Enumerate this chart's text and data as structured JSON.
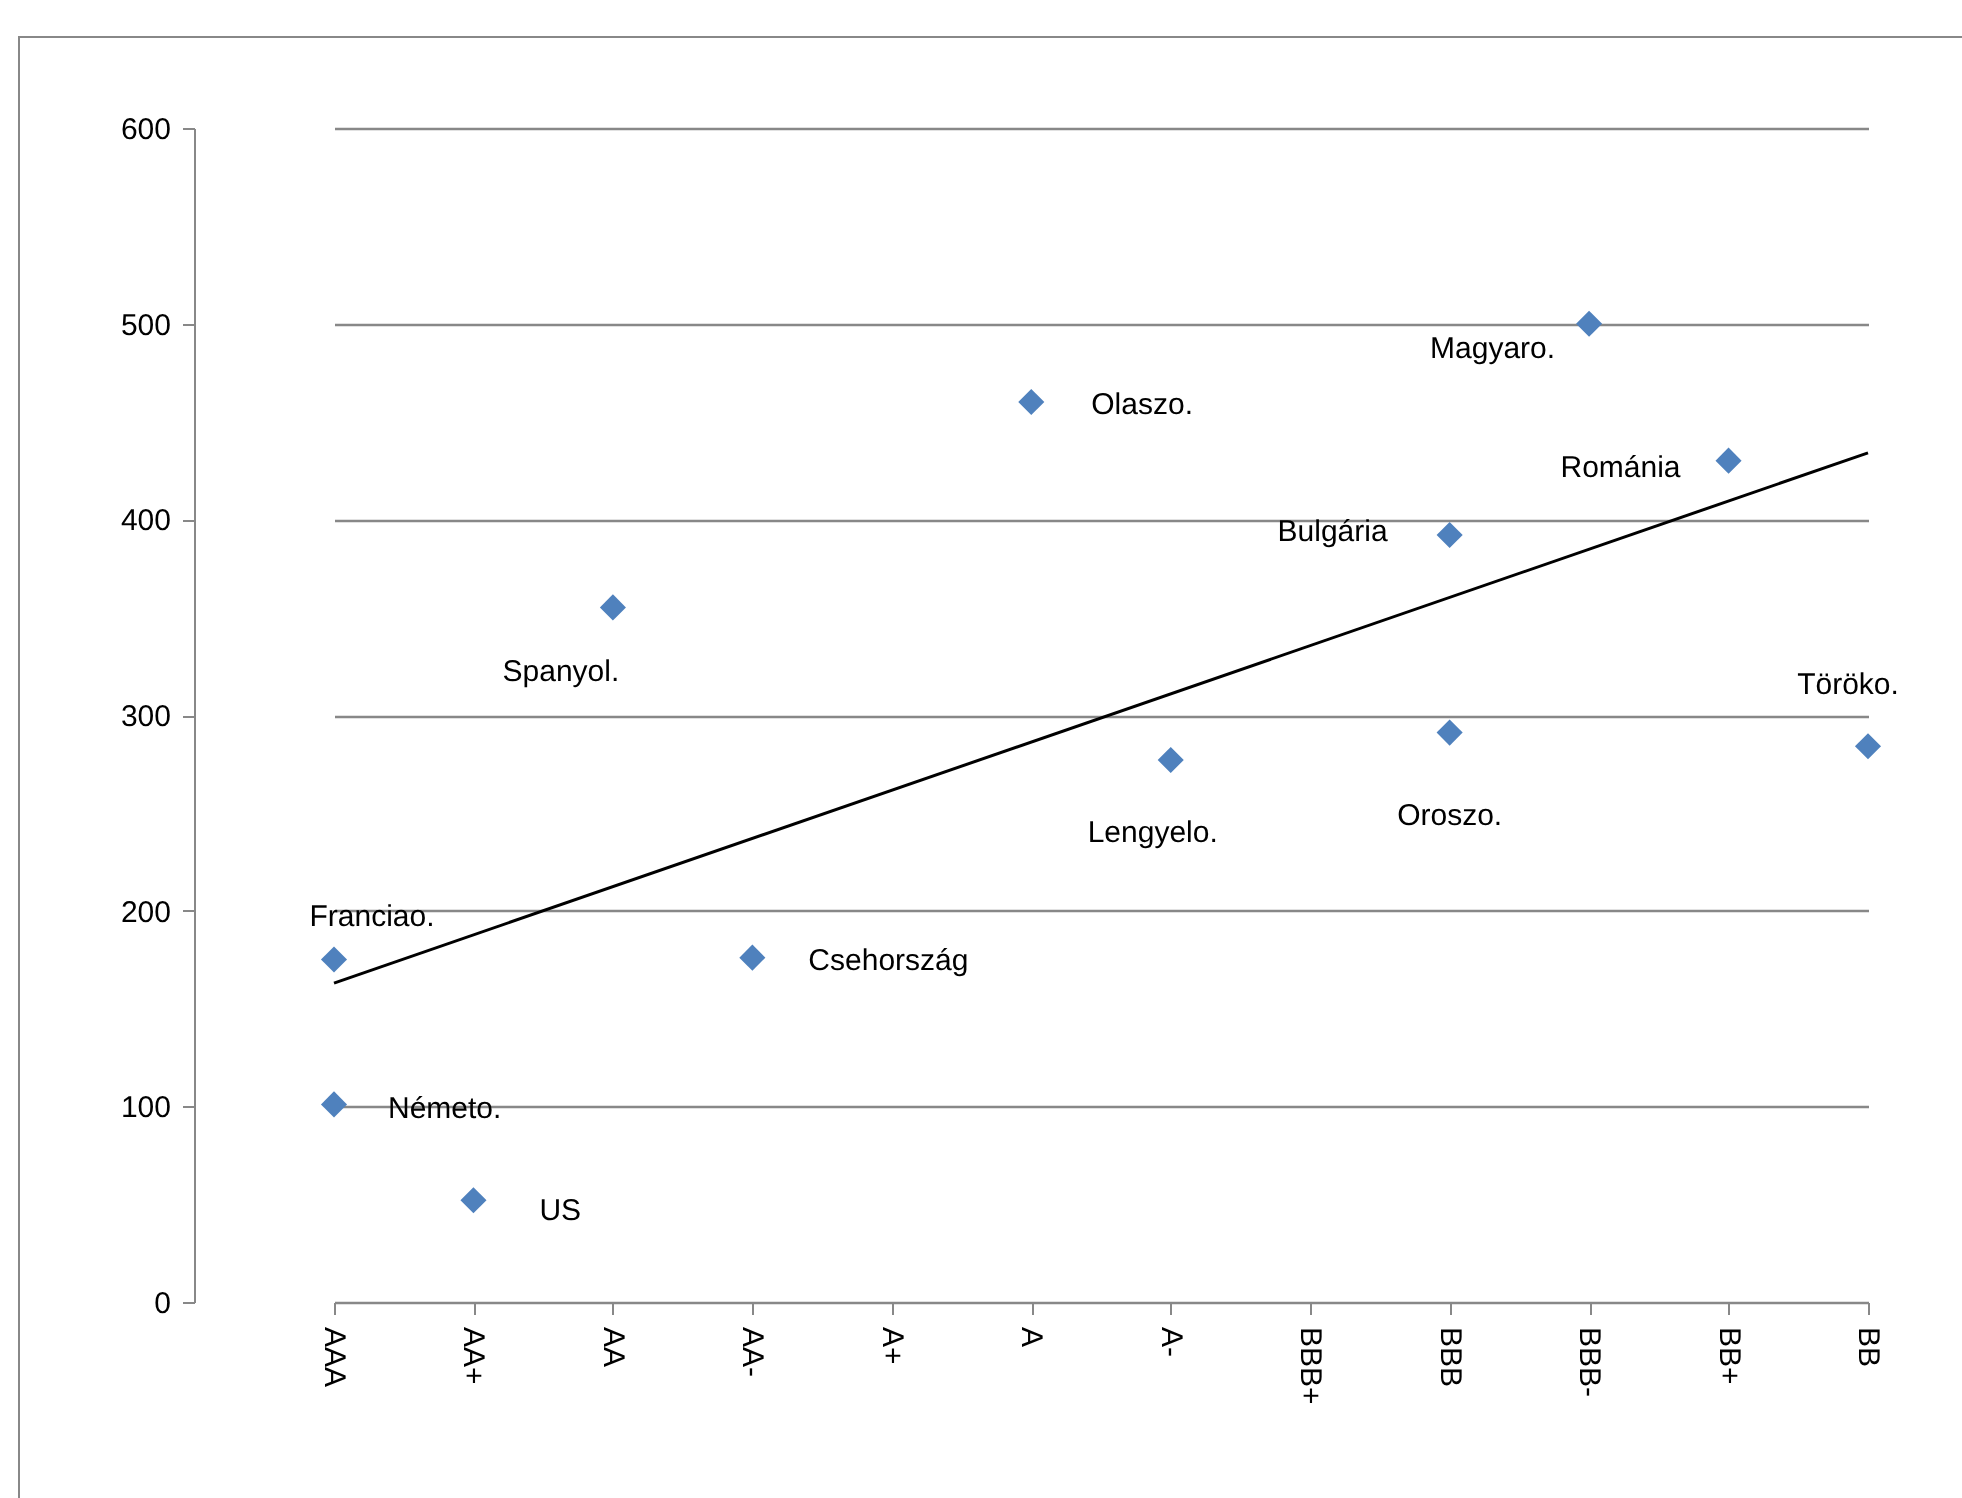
{
  "chart_data": {
    "type": "scatter",
    "categories": [
      "AAA",
      "AA+",
      "AA",
      "AA-",
      "A+",
      "A",
      "A-",
      "BBB+",
      "BBB",
      "BBB-",
      "BB+",
      "BB"
    ],
    "series": [
      {
        "color": "#4f81bd",
        "marker": "diamond",
        "x": [
          "AAA",
          "AAA",
          "AA+",
          "AA",
          "AA-",
          "A",
          "A-",
          "BBB",
          "BBB",
          "BBB-",
          "BB+",
          "BB"
        ],
        "values": [
          175,
          101,
          52,
          355,
          176,
          460,
          277,
          392,
          291,
          500,
          430,
          284
        ]
      },
      {
        "type": "line",
        "marker": "none",
        "color": "#000000",
        "x": [
          "AAA",
          "BB"
        ],
        "values": [
          163,
          434
        ]
      }
    ],
    "ylim": [
      0,
      600
    ],
    "yticks": [
      0,
      100,
      200,
      300,
      400,
      500,
      600
    ],
    "grid": "y",
    "annotations": [
      {
        "text": "Franciao.",
        "x": "AAA",
        "y": 175
      },
      {
        "text": "Németo.",
        "x": "AAA",
        "y": 101
      },
      {
        "text": "US",
        "x": "AA+",
        "y": 52
      },
      {
        "text": "Spanyol.",
        "x": "AA",
        "y": 355
      },
      {
        "text": "Csehország",
        "x": "AA-",
        "y": 176
      },
      {
        "text": "Olaszo.",
        "x": "A",
        "y": 460
      },
      {
        "text": "Lengyelo.",
        "x": "A-",
        "y": 277
      },
      {
        "text": "Bulgária",
        "x": "BBB",
        "y": 392
      },
      {
        "text": "Oroszo.",
        "x": "BBB",
        "y": 291
      },
      {
        "text": "Magyaro.",
        "x": "BBB-",
        "y": 500
      },
      {
        "text": "Románia",
        "x": "BB+",
        "y": 430
      },
      {
        "text": "Töröko.",
        "x": "BB",
        "y": 284
      }
    ]
  }
}
